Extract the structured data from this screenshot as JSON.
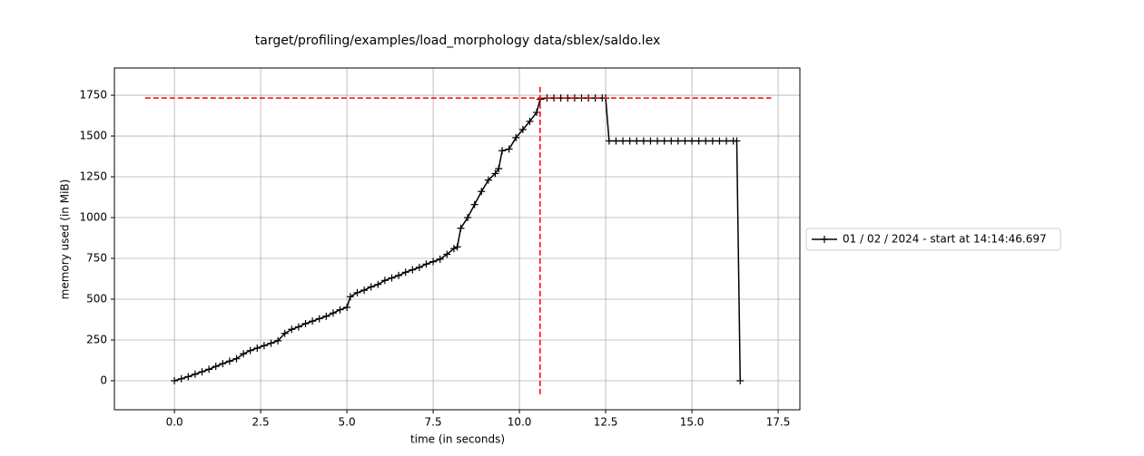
{
  "chart_data": {
    "type": "line",
    "title": "target/profiling/examples/load_morphology data/sblex/saldo.lex",
    "xlabel": "time (in seconds)",
    "ylabel": "memory used (in MiB)",
    "xlim": [
      -1.74,
      18.13
    ],
    "ylim": [
      -178,
      1917
    ],
    "xticks": [
      {
        "value": 0,
        "label": "0.0"
      },
      2.5,
      {
        "value": 5,
        "label": "5.0"
      },
      7.5,
      {
        "value": 10,
        "label": "10.0"
      },
      12.5,
      {
        "value": 15,
        "label": "15.0"
      },
      17.5
    ],
    "yticks": [
      0,
      250,
      500,
      750,
      1000,
      1250,
      1500,
      1750
    ],
    "grid": true,
    "legend": "outside right",
    "max_hline": {
      "y": 1733,
      "xmin": -0.85,
      "xmax": 17.3,
      "color": "#ff0000"
    },
    "max_vline": {
      "x": 10.6,
      "ymin": -83,
      "ymax": 1817,
      "color": "#ff0000"
    },
    "series": [
      {
        "name": "01 / 02 / 2024 - start at 14:14:46.697",
        "color": "#000000",
        "x": [
          0,
          0.2,
          0.4,
          0.6,
          0.8,
          1.0,
          1.2,
          1.4,
          1.6,
          1.8,
          2.0,
          2.2,
          2.4,
          2.6,
          2.8,
          3.0,
          3.2,
          3.4,
          3.6,
          3.8,
          4.0,
          4.2,
          4.4,
          4.6,
          4.8,
          5.0,
          5.1,
          5.3,
          5.5,
          5.7,
          5.9,
          6.1,
          6.3,
          6.5,
          6.7,
          6.9,
          7.1,
          7.3,
          7.5,
          7.7,
          7.9,
          8.1,
          8.2,
          8.3,
          8.5,
          8.7,
          8.9,
          9.1,
          9.3,
          9.4,
          9.5,
          9.7,
          9.9,
          10.1,
          10.3,
          10.5,
          10.6,
          10.8,
          11.0,
          11.2,
          11.4,
          11.6,
          11.8,
          12.0,
          12.2,
          12.4,
          12.5,
          12.6,
          12.8,
          13.0,
          13.2,
          13.4,
          13.6,
          13.8,
          14.0,
          14.2,
          14.4,
          14.6,
          14.8,
          15.0,
          15.2,
          15.4,
          15.6,
          15.8,
          16.0,
          16.2,
          16.3,
          16.4
        ],
        "values": [
          0,
          12,
          25,
          40,
          55,
          70,
          88,
          105,
          120,
          135,
          165,
          185,
          200,
          215,
          230,
          245,
          290,
          315,
          330,
          350,
          365,
          380,
          395,
          415,
          435,
          450,
          515,
          540,
          555,
          575,
          590,
          615,
          630,
          645,
          665,
          680,
          695,
          715,
          730,
          745,
          775,
          810,
          820,
          935,
          1000,
          1080,
          1160,
          1230,
          1270,
          1300,
          1410,
          1420,
          1490,
          1540,
          1590,
          1645,
          1725,
          1733,
          1733,
          1733,
          1733,
          1733,
          1733,
          1733,
          1733,
          1733,
          1733,
          1470,
          1470,
          1470,
          1470,
          1470,
          1470,
          1470,
          1470,
          1470,
          1470,
          1470,
          1470,
          1470,
          1470,
          1470,
          1470,
          1470,
          1470,
          1470,
          1470,
          0
        ]
      }
    ]
  }
}
